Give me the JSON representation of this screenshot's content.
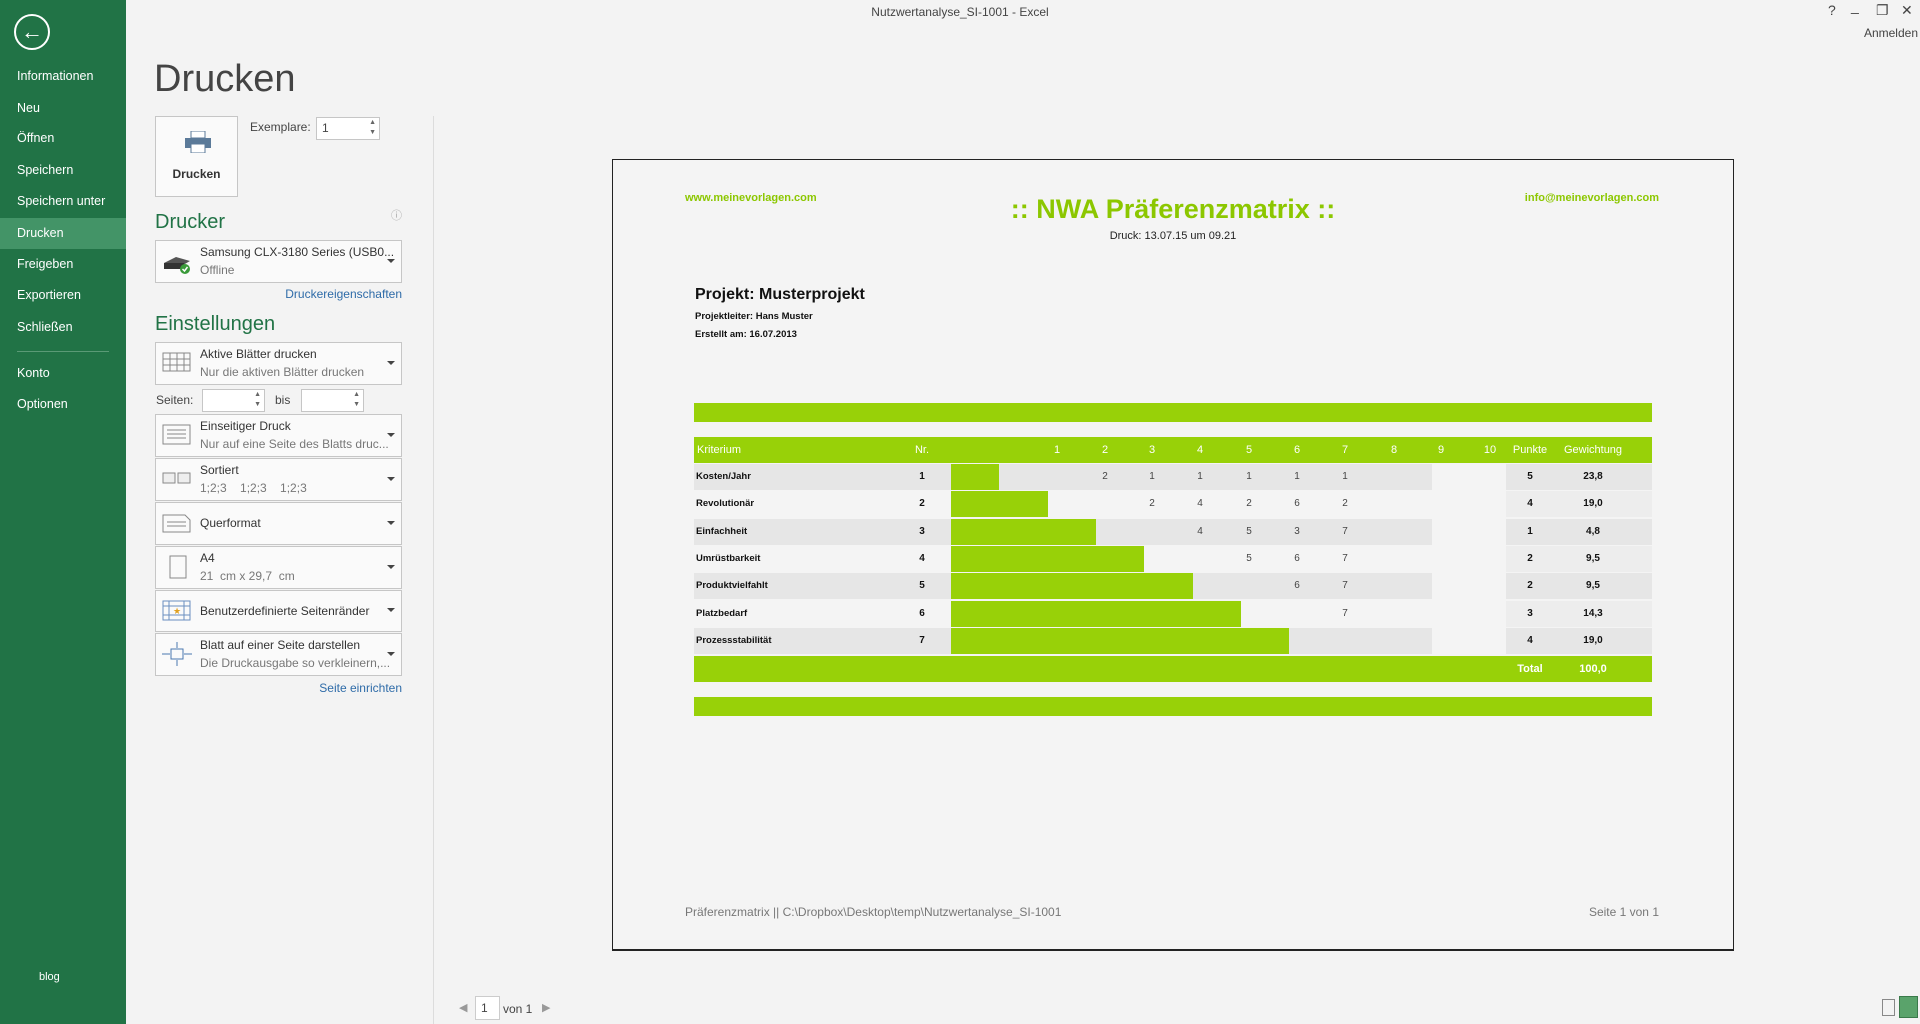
{
  "window": {
    "title": "Nutzwertanalyse_SI-1001 - Excel",
    "help": "?",
    "minimize": "_",
    "restore": "❐",
    "close": "✕",
    "signin": "Anmelden"
  },
  "sidebar": {
    "back_icon": "arrow-left-icon",
    "items": [
      {
        "label": "Informationen"
      },
      {
        "label": "Neu"
      },
      {
        "label": "Öffnen"
      },
      {
        "label": "Speichern"
      },
      {
        "label": "Speichern unter"
      },
      {
        "label": "Drucken",
        "active": true
      },
      {
        "label": "Freigeben"
      },
      {
        "label": "Exportieren"
      },
      {
        "label": "Schließen"
      },
      {
        "label": "Konto"
      },
      {
        "label": "Optionen"
      }
    ],
    "bottom": "blog",
    "color": "#217346"
  },
  "print": {
    "title": "Drucken",
    "print_button": "Drucken",
    "copies_label": "Exemplare:",
    "copies_value": "1",
    "printer_heading": "Drucker",
    "printer": {
      "name": "Samsung CLX-3180 Series (USB0...",
      "status": "Offline"
    },
    "printer_properties": "Druckereigenschaften",
    "settings_heading": "Einstellungen",
    "pages_label": "Seiten:",
    "pages_to": "bis",
    "pages_from_value": "",
    "pages_to_value": "",
    "settings": [
      {
        "title": "Aktive Blätter drucken",
        "sub": "Nur die aktiven Blätter drucken"
      },
      {
        "title": "Einseitiger Druck",
        "sub": "Nur auf eine Seite des Blatts druc..."
      },
      {
        "title": "Sortiert",
        "sub": "1;2;3    1;2;3    1;2;3"
      },
      {
        "title": "Querformat",
        "sub": ""
      },
      {
        "title": "A4",
        "sub": "21  cm x 29,7  cm"
      },
      {
        "title": "Benutzerdefinierte Seitenränder",
        "sub": ""
      },
      {
        "title": "Blatt auf einer Seite darstellen",
        "sub": "Die Druckausgabe so verkleinern,..."
      }
    ],
    "page_setup": "Seite einrichten"
  },
  "preview": {
    "website": "www.meinevorlagen.com",
    "title": ":: NWA Präferenzmatrix ::",
    "email": "info@meinevorlagen.com",
    "print_date": "Druck: 13.07.15 um 09.21",
    "project": "Projekt: Musterprojekt",
    "lead": "Projektleiter: Hans Muster",
    "created": "Erstellt am: 16.07.2013",
    "accent": "#98d108",
    "table": {
      "headers": {
        "criterion": "Kriterium",
        "nr": "Nr.",
        "cols": [
          "1",
          "2",
          "3",
          "4",
          "5",
          "6",
          "7",
          "8",
          "9",
          "10"
        ],
        "points": "Punkte",
        "weight": "Gewichtung"
      },
      "rows": [
        {
          "criterion": "Kosten/Jahr",
          "nr": "1",
          "bar": 1,
          "cells": [
            "",
            "2",
            "1",
            "1",
            "1",
            "1",
            "1",
            "",
            "",
            ""
          ],
          "points": "5",
          "weight": "23,8"
        },
        {
          "criterion": "Revolutionär",
          "nr": "2",
          "bar": 2,
          "cells": [
            "",
            "",
            "2",
            "4",
            "2",
            "6",
            "2",
            "",
            "",
            ""
          ],
          "points": "4",
          "weight": "19,0"
        },
        {
          "criterion": "Einfachheit",
          "nr": "3",
          "bar": 3,
          "cells": [
            "",
            "",
            "",
            "4",
            "5",
            "3",
            "7",
            "",
            "",
            ""
          ],
          "points": "1",
          "weight": "4,8"
        },
        {
          "criterion": "Umrüstbarkeit",
          "nr": "4",
          "bar": 4,
          "cells": [
            "",
            "",
            "",
            "",
            "5",
            "6",
            "7",
            "",
            "",
            ""
          ],
          "points": "2",
          "weight": "9,5"
        },
        {
          "criterion": "Produktvielfahlt",
          "nr": "5",
          "bar": 5,
          "cells": [
            "",
            "",
            "",
            "",
            "",
            "6",
            "7",
            "",
            "",
            ""
          ],
          "points": "2",
          "weight": "9,5"
        },
        {
          "criterion": "Platzbedarf",
          "nr": "6",
          "bar": 6,
          "cells": [
            "",
            "",
            "",
            "",
            "",
            "",
            "7",
            "",
            "",
            ""
          ],
          "points": "3",
          "weight": "14,3"
        },
        {
          "criterion": "Prozessstabilität",
          "nr": "7",
          "bar": 7,
          "cells": [
            "",
            "",
            "",
            "",
            "",
            "",
            "",
            "",
            "",
            ""
          ],
          "points": "4",
          "weight": "19,0"
        }
      ],
      "total_label": "Total",
      "total_value": "100,0"
    },
    "footer_left": "Präferenzmatrix  ||  C:\\Dropbox\\Desktop\\temp\\Nutzwertanalyse_SI-1001",
    "footer_right": "Seite 1 von 1"
  },
  "pager": {
    "current": "1",
    "of": "von 1"
  }
}
